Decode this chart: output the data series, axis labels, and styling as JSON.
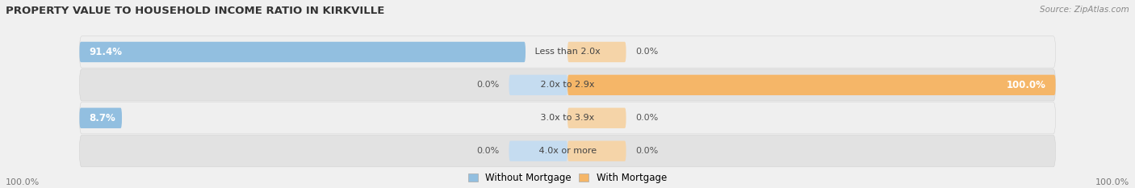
{
  "title": "PROPERTY VALUE TO HOUSEHOLD INCOME RATIO IN KIRKVILLE",
  "source": "Source: ZipAtlas.com",
  "categories": [
    "Less than 2.0x",
    "2.0x to 2.9x",
    "3.0x to 3.9x",
    "4.0x or more"
  ],
  "without_mortgage": [
    91.4,
    0.0,
    8.7,
    0.0
  ],
  "with_mortgage": [
    0.0,
    100.0,
    0.0,
    0.0
  ],
  "color_blue": "#92BFE0",
  "color_orange": "#F5B668",
  "color_orange_light": "#F5D4A8",
  "color_blue_light": "#C5DCF0",
  "bar_height": 0.62,
  "bg_dark": "#E2E2E2",
  "bg_light": "#EFEFEF",
  "legend_labels": [
    "Without Mortgage",
    "With Mortgage"
  ],
  "bottom_left": "100.0%",
  "bottom_right": "100.0%",
  "xlim_left": -100,
  "xlim_right": 100
}
